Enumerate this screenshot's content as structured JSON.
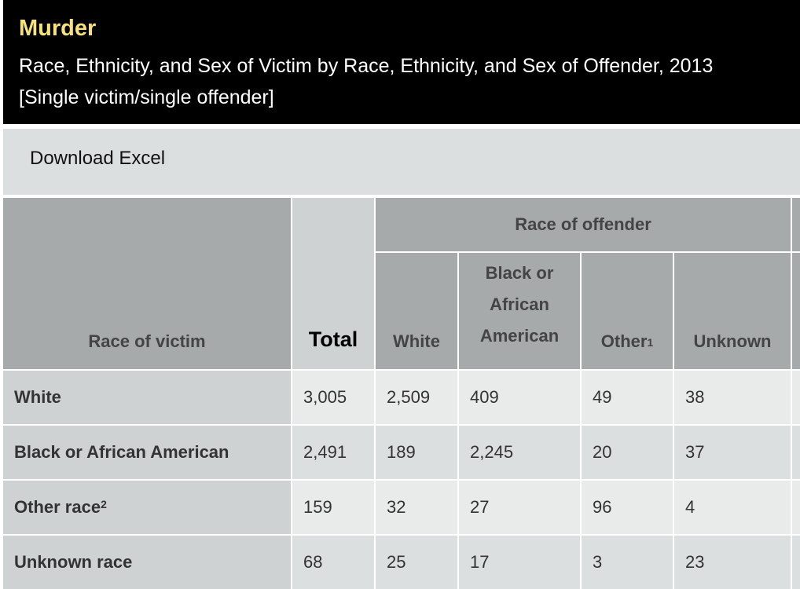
{
  "header": {
    "title": "Murder",
    "subtitle_line1": "Race, Ethnicity, and Sex of Victim by Race, Ethnicity, and Sex of Offender, 2013",
    "subtitle_line2": "[Single victim/single offender]"
  },
  "toolbar": {
    "download_label": "Download Excel"
  },
  "table": {
    "group_header": "Race of offender",
    "victim_header": "Race of victim",
    "total_header": "Total",
    "col_white": "White",
    "col_black": "Black or African American",
    "col_other": "Other",
    "col_other_sup": "1",
    "col_unknown": "Unknown",
    "rows": [
      {
        "label": "White",
        "sup": "",
        "total": "3,005",
        "white": "2,509",
        "black": "409",
        "other": "49",
        "unknown": "38"
      },
      {
        "label": "Black or African American",
        "sup": "",
        "total": "2,491",
        "white": "189",
        "black": "2,245",
        "other": "20",
        "unknown": "37"
      },
      {
        "label": "Other race",
        "sup": "2",
        "total": "159",
        "white": "32",
        "black": "27",
        "other": "96",
        "unknown": "4"
      },
      {
        "label": "Unknown race",
        "sup": "",
        "total": "68",
        "white": "25",
        "black": "17",
        "other": "3",
        "unknown": "23"
      }
    ]
  }
}
